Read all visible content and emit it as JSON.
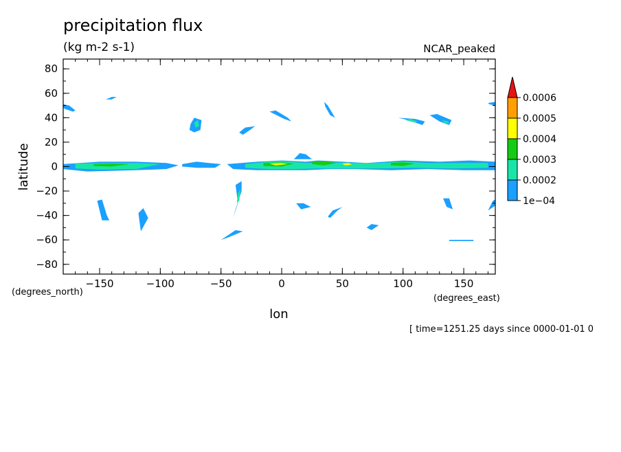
{
  "chart_data": {
    "type": "contour",
    "title": "precipitation flux",
    "units": "(kg m-2 s-1)",
    "colormap_name": "NCAR_peaked",
    "xlabel": "lon",
    "ylabel": "latitude",
    "x_units": "(degrees_east)",
    "y_units": "(degrees_north)",
    "xlim": [
      -180,
      176
    ],
    "ylim": [
      -88,
      88
    ],
    "x_ticks": [
      -150,
      -100,
      -50,
      0,
      50,
      100,
      150
    ],
    "y_ticks": [
      -80,
      -60,
      -40,
      -20,
      0,
      20,
      40,
      60,
      80
    ],
    "x_tick_labels": [
      "−150",
      "−100",
      "−50",
      "0",
      "50",
      "100",
      "150"
    ],
    "y_tick_labels": [
      "−80",
      "−60",
      "−40",
      "−20",
      "0",
      "20",
      "40",
      "60",
      "80"
    ],
    "levels": [
      0.0001,
      0.0002,
      0.0003,
      0.0004,
      0.0005,
      0.0006
    ],
    "level_labels": [
      "1e−04",
      "0.0002",
      "0.0003",
      "0.0004",
      "0.0005",
      "0.0006"
    ],
    "level_colors": [
      "#1aa0ff",
      "#19e6a6",
      "#14cc14",
      "#ffff00",
      "#ffa000",
      "#e81414"
    ],
    "time_note": "[ time=1251.25 days since 0000-01-01 0",
    "regions": [
      {
        "level": 0,
        "pts": [
          [
            -180,
            2
          ],
          [
            -150,
            4
          ],
          [
            -120,
            4
          ],
          [
            -95,
            3
          ],
          [
            -85,
            1
          ],
          [
            -95,
            -2
          ],
          [
            -120,
            -3
          ],
          [
            -160,
            -4
          ],
          [
            -180,
            -2
          ]
        ]
      },
      {
        "level": 1,
        "pts": [
          [
            -170,
            2.5
          ],
          [
            -140,
            3
          ],
          [
            -120,
            3
          ],
          [
            -100,
            2
          ],
          [
            -120,
            -2
          ],
          [
            -150,
            -2.5
          ],
          [
            -170,
            -1.5
          ]
        ]
      },
      {
        "level": 2,
        "pts": [
          [
            -155,
            2
          ],
          [
            -140,
            2.5
          ],
          [
            -125,
            2
          ],
          [
            -140,
            0
          ],
          [
            -155,
            0.5
          ]
        ]
      },
      {
        "level": 0,
        "pts": [
          [
            -82,
            2
          ],
          [
            -70,
            4
          ],
          [
            -60,
            3
          ],
          [
            -50,
            2
          ],
          [
            -55,
            -1
          ],
          [
            -70,
            -1
          ],
          [
            -82,
            0
          ]
        ]
      },
      {
        "level": 0,
        "pts": [
          [
            -45,
            2
          ],
          [
            -20,
            4
          ],
          [
            0,
            5
          ],
          [
            20,
            4
          ],
          [
            30,
            5
          ],
          [
            50,
            4
          ],
          [
            70,
            3
          ],
          [
            100,
            5
          ],
          [
            130,
            4
          ],
          [
            155,
            5
          ],
          [
            176,
            4
          ],
          [
            176,
            -3
          ],
          [
            150,
            -3
          ],
          [
            120,
            -2
          ],
          [
            90,
            -3
          ],
          [
            60,
            -2
          ],
          [
            40,
            -2
          ],
          [
            20,
            -3
          ],
          [
            0,
            -3
          ],
          [
            -20,
            -3
          ],
          [
            -40,
            -2
          ]
        ]
      },
      {
        "level": 1,
        "pts": [
          [
            -30,
            2
          ],
          [
            -10,
            4
          ],
          [
            0,
            4.5
          ],
          [
            20,
            3
          ],
          [
            40,
            3.5
          ],
          [
            60,
            3
          ],
          [
            80,
            3
          ],
          [
            100,
            4
          ],
          [
            120,
            3
          ],
          [
            150,
            3
          ],
          [
            170,
            3
          ],
          [
            170,
            -1
          ],
          [
            140,
            -1.5
          ],
          [
            110,
            -1
          ],
          [
            80,
            -1.5
          ],
          [
            50,
            -1.5
          ],
          [
            30,
            -1.5
          ],
          [
            10,
            -2
          ],
          [
            -10,
            -2
          ],
          [
            -30,
            -1
          ]
        ]
      },
      {
        "level": 2,
        "pts": [
          [
            -15,
            3
          ],
          [
            0,
            3.5
          ],
          [
            10,
            2.5
          ],
          [
            0,
            0
          ],
          [
            -15,
            0.5
          ]
        ]
      },
      {
        "level": 2,
        "pts": [
          [
            25,
            4
          ],
          [
            35,
            4.5
          ],
          [
            45,
            3
          ],
          [
            35,
            1
          ],
          [
            25,
            2
          ]
        ]
      },
      {
        "level": 2,
        "pts": [
          [
            90,
            3
          ],
          [
            100,
            3.5
          ],
          [
            110,
            2.5
          ],
          [
            100,
            0.5
          ],
          [
            90,
            1
          ]
        ]
      },
      {
        "level": 3,
        "pts": [
          [
            -10,
            2.5
          ],
          [
            0,
            3
          ],
          [
            5,
            2
          ],
          [
            -5,
            1
          ]
        ]
      },
      {
        "level": 3,
        "pts": [
          [
            50,
            2.5
          ],
          [
            55,
            3
          ],
          [
            58,
            1.5
          ],
          [
            52,
            1
          ]
        ]
      },
      {
        "level": 0,
        "pts": [
          [
            10,
            6
          ],
          [
            15,
            11
          ],
          [
            20,
            10
          ],
          [
            25,
            6
          ]
        ]
      },
      {
        "level": 0,
        "pts": [
          [
            -180,
            51
          ],
          [
            -175,
            50
          ],
          [
            -170,
            46
          ],
          [
            -172,
            45
          ],
          [
            -178,
            47
          ],
          [
            -180,
            48
          ]
        ]
      },
      {
        "level": 0,
        "pts": [
          [
            -145,
            55
          ],
          [
            -140,
            57
          ],
          [
            -136,
            57
          ],
          [
            -140,
            55
          ]
        ]
      },
      {
        "level": 0,
        "pts": [
          [
            -75,
            35
          ],
          [
            -72,
            40
          ],
          [
            -66,
            38
          ],
          [
            -67,
            30
          ],
          [
            -72,
            28
          ],
          [
            -76,
            30
          ]
        ]
      },
      {
        "level": 1,
        "pts": [
          [
            -72,
            36
          ],
          [
            -69,
            38
          ],
          [
            -68,
            33
          ],
          [
            -71,
            32
          ]
        ]
      },
      {
        "level": 0,
        "pts": [
          [
            -35,
            28
          ],
          [
            -30,
            32
          ],
          [
            -22,
            33
          ],
          [
            -26,
            30
          ],
          [
            -32,
            26
          ]
        ]
      },
      {
        "level": 0,
        "pts": [
          [
            -10,
            45
          ],
          [
            -5,
            46
          ],
          [
            5,
            40
          ],
          [
            8,
            37
          ],
          [
            2,
            39
          ]
        ]
      },
      {
        "level": 0,
        "pts": [
          [
            35,
            53
          ],
          [
            38,
            50
          ],
          [
            44,
            40
          ],
          [
            40,
            42
          ],
          [
            36,
            49
          ]
        ]
      },
      {
        "level": 0,
        "pts": [
          [
            96,
            40
          ],
          [
            104,
            38
          ],
          [
            116,
            34
          ],
          [
            118,
            37
          ],
          [
            110,
            39
          ]
        ]
      },
      {
        "level": 1,
        "pts": [
          [
            102,
            38
          ],
          [
            110,
            36
          ],
          [
            112,
            37
          ],
          [
            106,
            39
          ]
        ]
      },
      {
        "level": 0,
        "pts": [
          [
            122,
            42
          ],
          [
            128,
            43
          ],
          [
            140,
            38
          ],
          [
            138,
            34
          ],
          [
            130,
            37
          ]
        ]
      },
      {
        "level": 1,
        "pts": [
          [
            132,
            38
          ],
          [
            137,
            37
          ],
          [
            138,
            35
          ],
          [
            134,
            36
          ]
        ]
      },
      {
        "level": 0,
        "pts": [
          [
            170,
            52
          ],
          [
            176,
            53
          ],
          [
            176,
            50
          ],
          [
            171,
            51
          ]
        ]
      },
      {
        "level": 0,
        "pts": [
          [
            -38,
            -15
          ],
          [
            -33,
            -12
          ],
          [
            -33,
            -20
          ],
          [
            -38,
            -35
          ],
          [
            -40,
            -42
          ],
          [
            -36,
            -30
          ]
        ]
      },
      {
        "level": 1,
        "pts": [
          [
            -36,
            -22
          ],
          [
            -34,
            -18
          ],
          [
            -35,
            -28
          ],
          [
            -37,
            -30
          ]
        ]
      },
      {
        "level": 0,
        "pts": [
          [
            -152,
            -28
          ],
          [
            -148,
            -27
          ],
          [
            -144,
            -40
          ],
          [
            -142,
            -44
          ],
          [
            -148,
            -44
          ]
        ]
      },
      {
        "level": 0,
        "pts": [
          [
            -118,
            -38
          ],
          [
            -114,
            -34
          ],
          [
            -110,
            -42
          ],
          [
            -116,
            -53
          ],
          [
            -117,
            -46
          ]
        ]
      },
      {
        "level": 0,
        "pts": [
          [
            -50,
            -60
          ],
          [
            -38,
            -52
          ],
          [
            -32,
            -53
          ],
          [
            -44,
            -58
          ]
        ]
      },
      {
        "level": 1,
        "pts": [
          [
            -45,
            -57
          ],
          [
            -40,
            -55
          ],
          [
            -42,
            -56
          ]
        ]
      },
      {
        "level": 0,
        "pts": [
          [
            12,
            -30
          ],
          [
            18,
            -30
          ],
          [
            24,
            -33
          ],
          [
            16,
            -35
          ]
        ]
      },
      {
        "level": 0,
        "pts": [
          [
            38,
            -41
          ],
          [
            42,
            -36
          ],
          [
            50,
            -33
          ],
          [
            46,
            -36
          ],
          [
            40,
            -42
          ]
        ]
      },
      {
        "level": 1,
        "pts": [
          [
            42,
            -39
          ],
          [
            46,
            -36
          ],
          [
            44,
            -38
          ]
        ]
      },
      {
        "level": 0,
        "pts": [
          [
            70,
            -50
          ],
          [
            74,
            -47
          ],
          [
            80,
            -48
          ],
          [
            74,
            -52
          ]
        ]
      },
      {
        "level": 0,
        "pts": [
          [
            133,
            -26
          ],
          [
            138,
            -26
          ],
          [
            141,
            -35
          ],
          [
            136,
            -33
          ]
        ]
      },
      {
        "level": 0,
        "pts": [
          [
            138,
            -60
          ],
          [
            158,
            -60
          ],
          [
            158,
            -61
          ],
          [
            138,
            -61
          ]
        ]
      },
      {
        "level": 0,
        "pts": [
          [
            170,
            -36
          ],
          [
            174,
            -28
          ],
          [
            176,
            -27
          ],
          [
            176,
            -32
          ]
        ]
      }
    ]
  }
}
